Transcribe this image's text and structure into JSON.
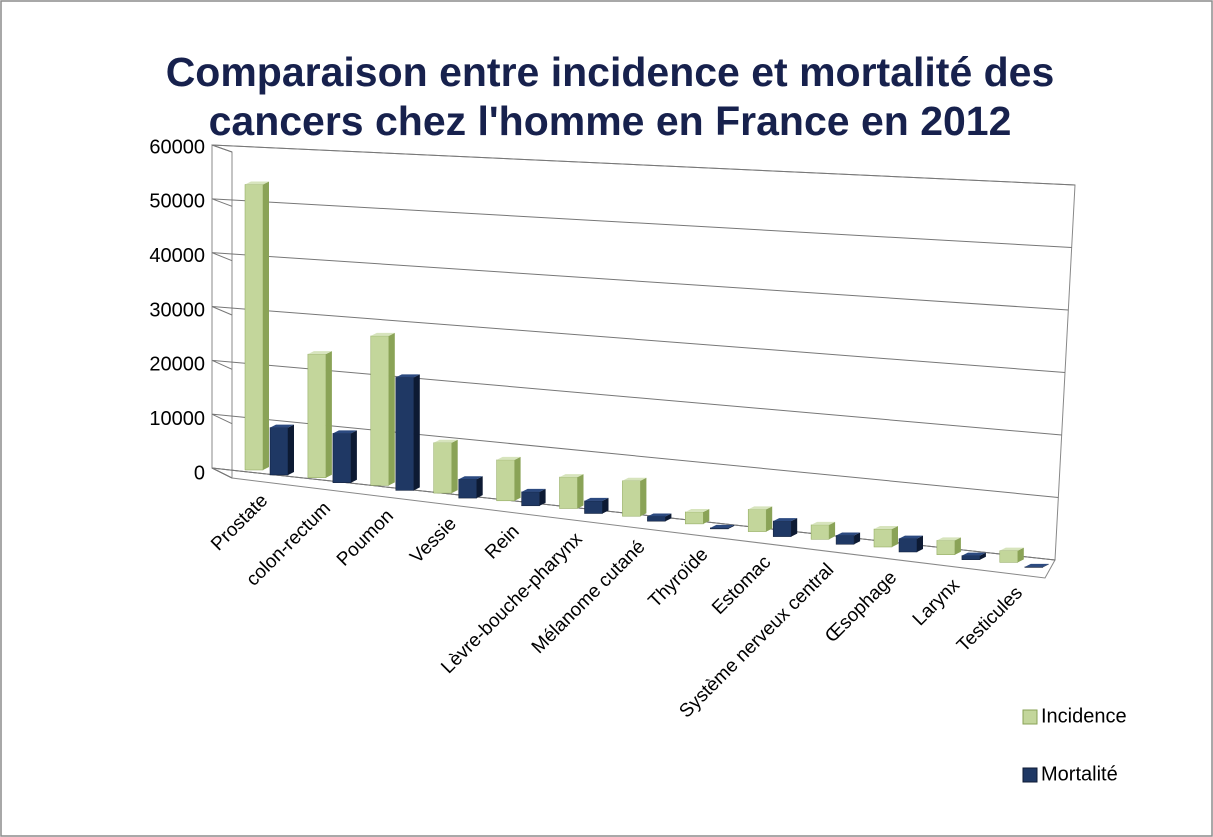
{
  "chart_data": {
    "type": "bar3d",
    "title": [
      "Comparaison entre incidence et mortalité des",
      "cancers chez l'homme en France en 2012"
    ],
    "categories": [
      "Prostate",
      "colon-rectum",
      "Poumon",
      "Vessie",
      "Rein",
      "Lèvre-bouche-pharynx",
      "Mélanome cutané",
      "Thyroïde",
      "Estomac",
      "Système nerveux central",
      "Œsophage",
      "Larynx",
      "Testicules"
    ],
    "series": [
      {
        "name": "Incidence",
        "color": "#c3d69b",
        "values": [
          53465,
          23226,
          28211,
          9549,
          7781,
          6000,
          6800,
          2300,
          4300,
          2800,
          3500,
          2800,
          2300
        ]
      },
      {
        "name": "Mortalité",
        "color": "#1f3864",
        "values": [
          8876,
          9275,
          21326,
          3574,
          2651,
          2400,
          900,
          200,
          3000,
          1700,
          2600,
          800,
          100
        ]
      }
    ],
    "ylim": [
      0,
      60000
    ],
    "yticks": [
      0,
      10000,
      20000,
      30000,
      40000,
      50000,
      60000
    ],
    "grid": true,
    "legend": "right"
  }
}
